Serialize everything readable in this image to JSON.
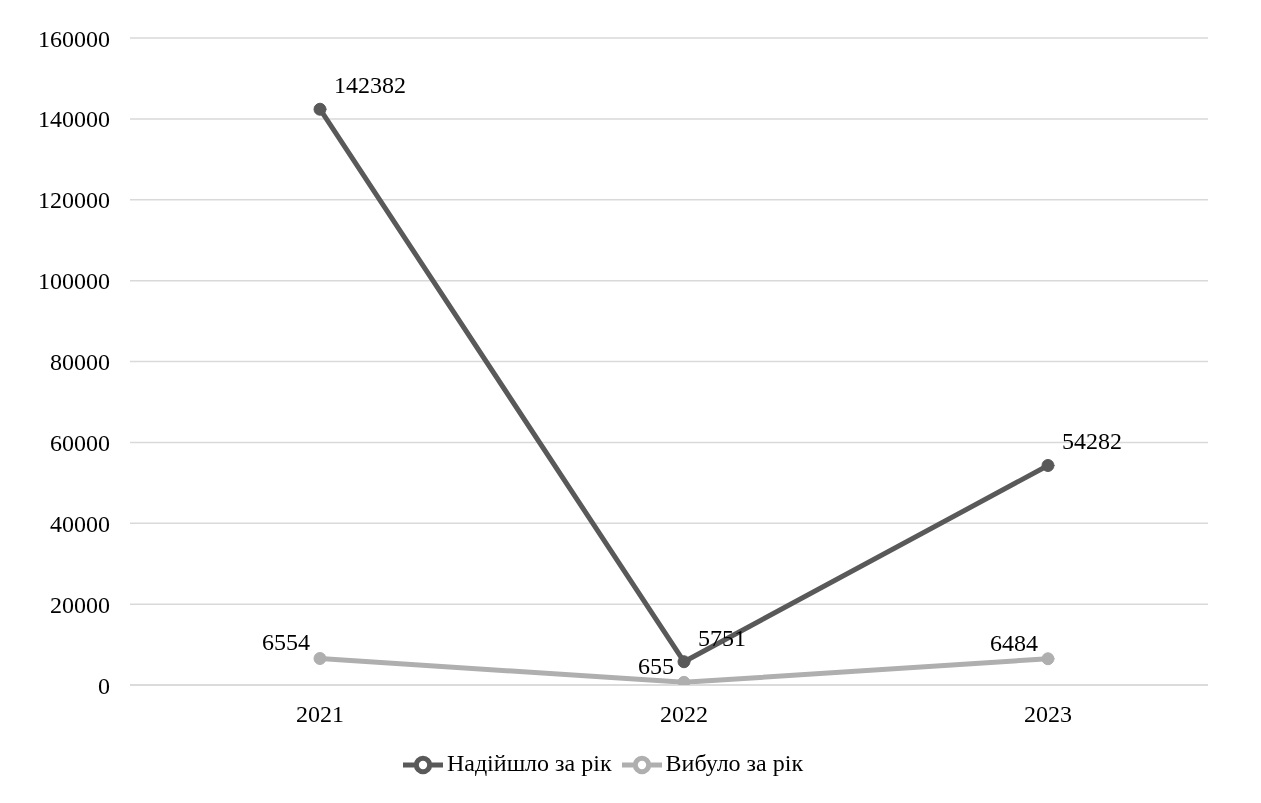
{
  "chart_data": {
    "type": "line",
    "categories": [
      "2021",
      "2022",
      "2023"
    ],
    "series": [
      {
        "name": "Надійшло за рік",
        "color": "#595959",
        "values": [
          142382,
          5751,
          54282
        ]
      },
      {
        "name": "Вибуло за рік",
        "color": "#afafaf",
        "values": [
          6554,
          655,
          6484
        ]
      }
    ],
    "ylim": [
      0,
      160000
    ],
    "yticks": [
      0,
      20000,
      40000,
      60000,
      80000,
      100000,
      120000,
      140000,
      160000
    ],
    "grid": "y",
    "legend": "bottom",
    "marker": "circle",
    "line_style": "solid",
    "data_labels": true
  }
}
